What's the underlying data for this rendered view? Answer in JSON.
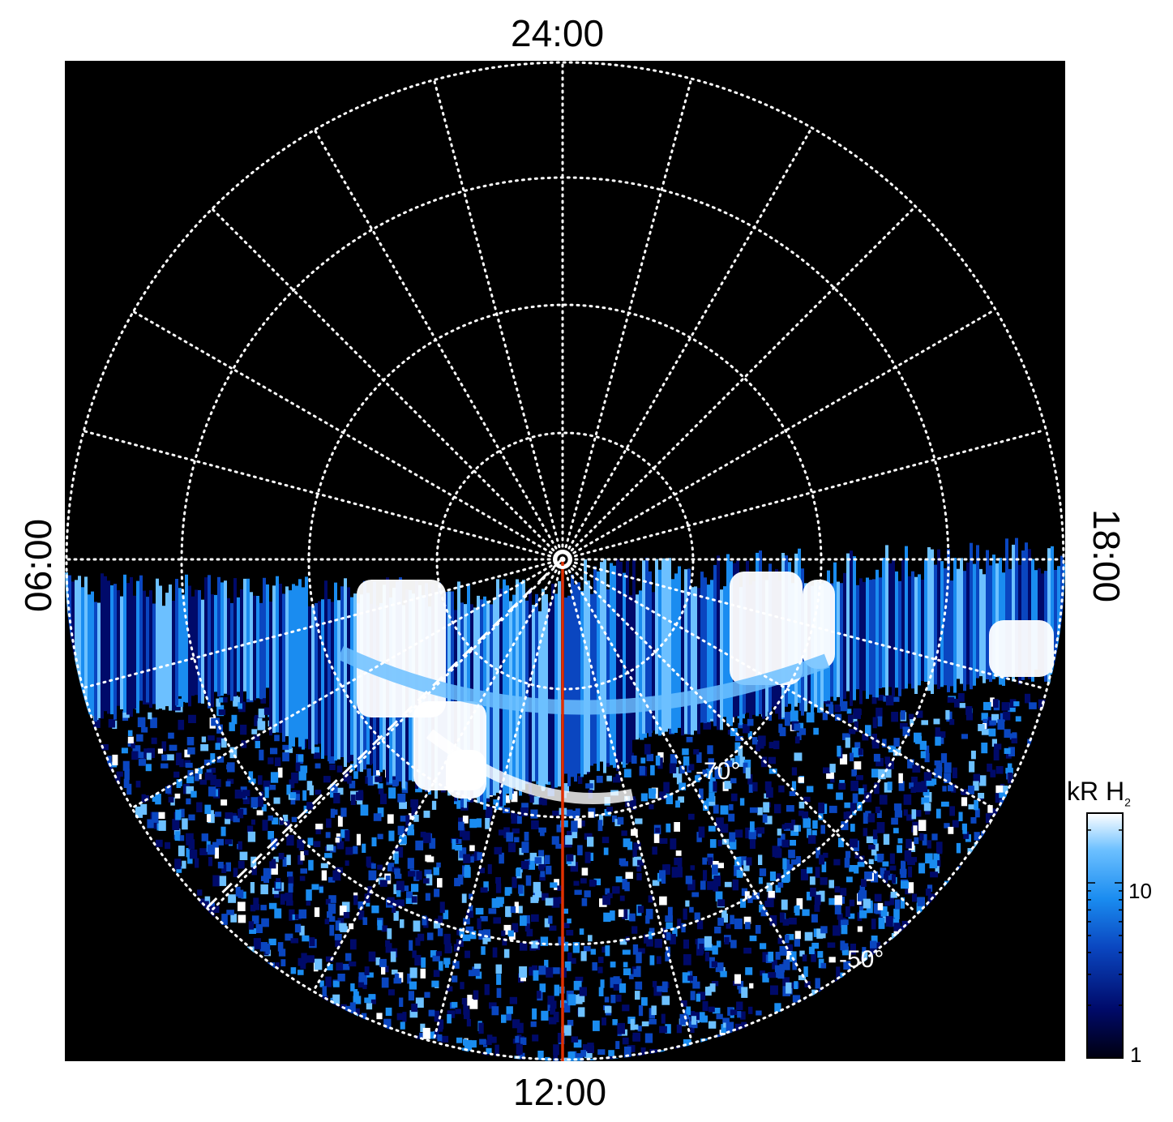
{
  "chart_data": {
    "type": "heatmap",
    "projection": "polar (south pole)",
    "local_time_labels": {
      "top": "24:00",
      "bottom": "12:00",
      "left": "06:00",
      "right": "18:00"
    },
    "latitude_labels": [
      "-70°",
      "-50°"
    ],
    "colorbar": {
      "title": "kR H",
      "title_subscript": "2",
      "ticks": [
        "10",
        "1"
      ],
      "range": [
        1,
        25
      ],
      "scale": "log",
      "colormap": [
        "#000010",
        "#000a6a",
        "#0a46c0",
        "#1a8cf0",
        "#6cc0ff",
        "#ffffff"
      ]
    },
    "grid": true,
    "grid_style": "dotted white",
    "background": "#000000",
    "annotations": {
      "red_meridian_color": "#e03000",
      "dashed_line_color": "#ffffff"
    }
  }
}
